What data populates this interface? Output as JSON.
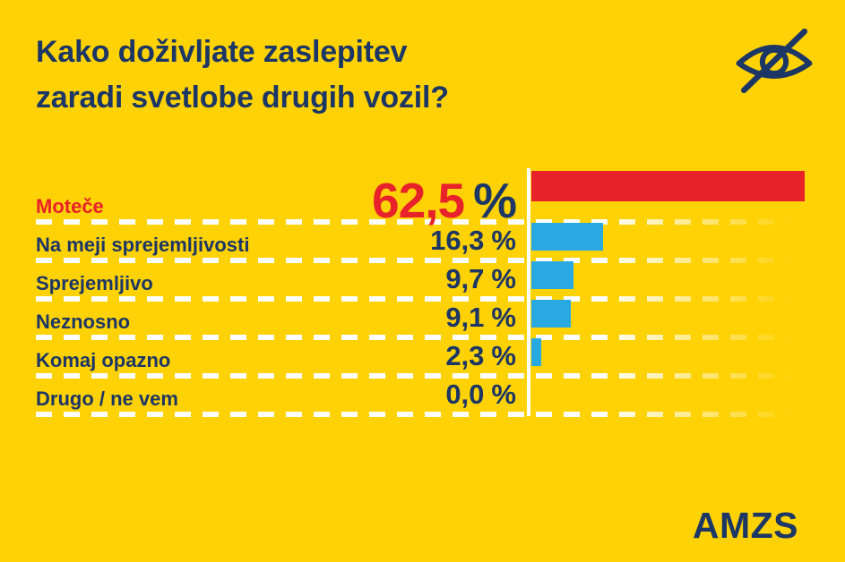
{
  "header": {
    "title_line1": "Kako doživljate zaslepitev",
    "title_line2": "zaradi svetlobe drugih vozil?",
    "icon": "eye-off-icon"
  },
  "footer": {
    "logo_text": "AMZS"
  },
  "colors": {
    "background": "#ffd205",
    "navy": "#1c3665",
    "red": "#e8222a",
    "blue": "#29a9e1",
    "separator": "#ffffff"
  },
  "chart_data": {
    "type": "bar",
    "orientation": "horizontal",
    "title": "Kako doživljate zaslepitev zaradi svetlobe drugih vozil?",
    "unit": "%",
    "decimal_separator": ",",
    "categories": [
      "Moteče",
      "Na meji sprejemljivosti",
      "Sprejemljivo",
      "Neznosno",
      "Komaj opazno",
      "Drugo / ne vem"
    ],
    "values": [
      62.5,
      16.3,
      9.7,
      9.1,
      2.3,
      0.0
    ],
    "value_labels": [
      "62,5 %",
      "16,3 %",
      "9,7 %",
      "9,1 %",
      "2,3 %",
      "0,0 %"
    ],
    "bar_colors": [
      "#e8222a",
      "#29a9e1",
      "#29a9e1",
      "#29a9e1",
      "#29a9e1",
      "#29a9e1"
    ],
    "highlight_index": 0,
    "xlim": [
      0,
      100
    ],
    "x_axis_visible": false,
    "legend": false,
    "gridlines": "dashed-white-row-separators",
    "baseline_axis": "white-vertical-line"
  }
}
